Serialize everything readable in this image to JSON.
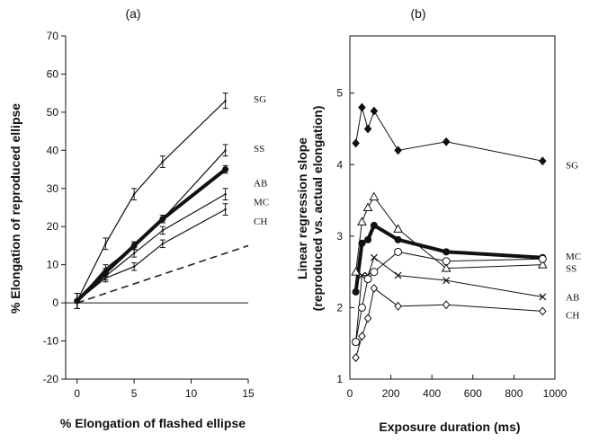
{
  "chart_data": [
    {
      "type": "line",
      "panel": "(a)",
      "xlabel": "% Elongation of flashed ellipse",
      "ylabel": "% Elongation of reproduced ellipse",
      "xlim": [
        -1,
        15
      ],
      "ylim": [
        -20,
        70
      ],
      "xticks": [
        "0",
        "5",
        "10",
        "15"
      ],
      "yticks": [
        "-20",
        "-10",
        "0",
        "10",
        "20",
        "30",
        "40",
        "50",
        "60",
        "70"
      ],
      "x": [
        0,
        2.5,
        5,
        7.5,
        13
      ],
      "reference_line": {
        "style": "dashed",
        "x": [
          0,
          15
        ],
        "y": [
          0,
          15
        ]
      },
      "series": [
        {
          "name": "SG",
          "values": [
            0.5,
            15.5,
            28.5,
            37,
            53
          ],
          "errors": [
            2,
            1.5,
            1.5,
            1.5,
            2
          ],
          "bold": false
        },
        {
          "name": "SS",
          "values": [
            0.5,
            9,
            15,
            22,
            40
          ],
          "errors": [
            2,
            1,
            1,
            1,
            1.5
          ],
          "bold": false
        },
        {
          "name": "AB",
          "values": [
            0.5,
            8,
            15,
            22,
            35
          ],
          "errors": [
            2,
            1,
            1,
            1,
            1
          ],
          "bold": true
        },
        {
          "name": "MC",
          "values": [
            0.5,
            7,
            13,
            19,
            28.5
          ],
          "errors": [
            2,
            1,
            1,
            1,
            1.5
          ],
          "bold": false
        },
        {
          "name": "CH",
          "values": [
            0.5,
            6.5,
            9.5,
            15.5,
            24.5
          ],
          "errors": [
            2,
            1,
            1,
            1,
            1.5
          ],
          "bold": false
        }
      ]
    },
    {
      "type": "line",
      "panel": "(b)",
      "xlabel": "Exposure duration (ms)",
      "ylabel": "Linear regression slope",
      "ylabel2": "(reproduced vs. actual elongation)",
      "xlim": [
        0,
        1000
      ],
      "ylim": [
        1,
        5.8
      ],
      "xticks": [
        "0",
        "200",
        "400",
        "600",
        "800",
        "1000"
      ],
      "yticks": [
        "1",
        "2",
        "3",
        "4",
        "5"
      ],
      "series": [
        {
          "name": "SG",
          "marker": "diamond-filled",
          "x": [
            29,
            59,
            88,
            118,
            235,
            470,
            940
          ],
          "values": [
            4.3,
            4.8,
            4.5,
            4.75,
            4.2,
            4.32,
            4.05
          ]
        },
        {
          "name": "MC",
          "marker": "circle-filled",
          "bold": true,
          "x": [
            29,
            59,
            88,
            118,
            235,
            470,
            940
          ],
          "values": [
            2.22,
            2.9,
            2.95,
            3.15,
            2.95,
            2.78,
            2.7
          ]
        },
        {
          "name": "SS",
          "marker": "triangle-open",
          "x": [
            29,
            59,
            88,
            118,
            235,
            470,
            940
          ],
          "values": [
            2.5,
            3.2,
            3.4,
            3.55,
            3.1,
            2.55,
            2.6
          ]
        },
        {
          "name": "AB",
          "marker": "x",
          "x": [
            29,
            59,
            88,
            118,
            235,
            470,
            940
          ],
          "values": [
            1.52,
            2.45,
            2.45,
            2.7,
            2.45,
            2.38,
            2.15
          ]
        },
        {
          "name": "",
          "marker": "circle-open",
          "x": [
            29,
            59,
            88,
            118,
            235,
            470,
            940
          ],
          "values": [
            1.52,
            2.0,
            2.4,
            2.5,
            2.78,
            2.65,
            2.68
          ]
        },
        {
          "name": "CH",
          "marker": "diamond-open",
          "x": [
            29,
            59,
            88,
            118,
            235,
            470,
            940
          ],
          "values": [
            1.3,
            1.6,
            1.85,
            2.27,
            2.02,
            2.04,
            1.95
          ]
        }
      ]
    }
  ]
}
